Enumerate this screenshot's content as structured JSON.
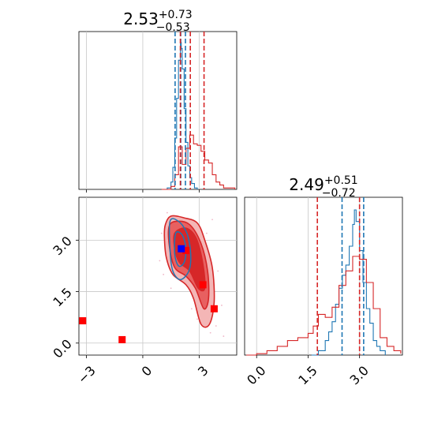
{
  "colors": {
    "red": "#d62728",
    "blue": "#1f77b4",
    "red_fill_light": "#f4b6b6",
    "red_fill_mid": "#e86060",
    "red_fill_dark": "#d62728",
    "marker_red": "#ff0000",
    "marker_blue": "#0000ff",
    "grid": "#c8c8c8"
  },
  "chart_data": [
    {
      "type": "histogram",
      "panel": "top-left marginal (parameter 1)",
      "title": {
        "value": "2.53",
        "upper": "+0.73",
        "lower": "−0.53"
      },
      "xlim": [
        -3.4,
        5.0
      ],
      "grid_x": [
        -3,
        0,
        3
      ],
      "lines": [
        {
          "x": 1.72,
          "color": "blue",
          "style": "dashed"
        },
        {
          "x": 2.02,
          "color": "blue",
          "style": "dashed"
        },
        {
          "x": 2.27,
          "color": "blue",
          "style": "dashed"
        },
        {
          "x": 2.0,
          "color": "red",
          "style": "dashed"
        },
        {
          "x": 2.53,
          "color": "red",
          "style": "dashed"
        },
        {
          "x": 3.26,
          "color": "red",
          "style": "dashed"
        }
      ],
      "series": [
        {
          "color": "blue",
          "x": [
            1.1,
            1.3,
            1.5,
            1.6,
            1.7,
            1.8,
            1.9,
            2.0,
            2.05,
            2.1,
            2.2,
            2.3,
            2.4,
            2.5,
            2.6,
            2.75,
            2.9
          ],
          "y": [
            0,
            0.01,
            0.05,
            0.15,
            0.35,
            0.62,
            0.88,
            1.0,
            0.96,
            0.82,
            0.55,
            0.32,
            0.16,
            0.08,
            0.04,
            0.01,
            0
          ]
        },
        {
          "color": "red",
          "x": [
            1.0,
            1.5,
            1.7,
            1.9,
            2.1,
            2.3,
            2.5,
            2.7,
            2.9,
            3.1,
            3.3,
            3.5,
            3.7,
            3.9,
            4.1,
            4.3,
            4.5,
            4.7,
            4.9
          ],
          "y": [
            0,
            0.02,
            0.1,
            0.29,
            0.17,
            0.28,
            0.37,
            0.31,
            0.3,
            0.26,
            0.2,
            0.18,
            0.1,
            0.05,
            0.03,
            0.01,
            0.01,
            0.01,
            0
          ]
        }
      ]
    },
    {
      "type": "scatter",
      "panel": "bottom-left 2D density (parameter 1 vs parameter 2)",
      "xlim": [
        -3.4,
        5.0
      ],
      "ylim": [
        -0.35,
        4.25
      ],
      "xticks": [
        -3,
        0,
        3
      ],
      "yticks": [
        0.0,
        1.5,
        3.0
      ],
      "xtick_labels": [
        "−3",
        "0",
        "3"
      ],
      "ytick_labels": [
        "0.0",
        "1.5",
        "3.0"
      ],
      "red_markers": [
        [
          -3.2,
          0.65
        ],
        [
          -1.1,
          0.1
        ],
        [
          3.2,
          1.7
        ],
        [
          3.8,
          1.0
        ],
        [
          2.3,
          2.7
        ]
      ],
      "blue_markers": [
        [
          2.05,
          2.75
        ]
      ],
      "red_contours": [
        {
          "level": "outer",
          "points": [
            [
              1.2,
              3.45
            ],
            [
              1.5,
              3.7
            ],
            [
              2.2,
              3.65
            ],
            [
              2.9,
              3.5
            ],
            [
              3.3,
              3.0
            ],
            [
              3.7,
              2.2
            ],
            [
              3.8,
              1.2
            ],
            [
              3.55,
              0.55
            ],
            [
              3.1,
              0.55
            ],
            [
              2.7,
              1.3
            ],
            [
              2.3,
              1.7
            ],
            [
              1.6,
              2.0
            ],
            [
              1.25,
              2.5
            ],
            [
              1.15,
              3.1
            ]
          ]
        },
        {
          "level": "middle",
          "points": [
            [
              1.4,
              3.4
            ],
            [
              1.8,
              3.55
            ],
            [
              2.5,
              3.45
            ],
            [
              3.1,
              2.9
            ],
            [
              3.45,
              2.1
            ],
            [
              3.5,
              1.3
            ],
            [
              3.25,
              1.0
            ],
            [
              2.8,
              1.6
            ],
            [
              2.3,
              1.95
            ],
            [
              1.7,
              2.2
            ],
            [
              1.42,
              2.8
            ]
          ]
        },
        {
          "level": "inner",
          "points": [
            [
              1.7,
              3.2
            ],
            [
              2.3,
              3.35
            ],
            [
              2.85,
              3.05
            ],
            [
              3.2,
              2.3
            ],
            [
              3.3,
              1.6
            ],
            [
              2.95,
              1.6
            ],
            [
              2.5,
              2.1
            ],
            [
              1.95,
              2.35
            ],
            [
              1.7,
              2.75
            ]
          ]
        }
      ],
      "blue_contours": [
        {
          "level": "outer",
          "points": [
            [
              1.45,
              3.55
            ],
            [
              1.9,
              3.55
            ],
            [
              2.35,
              3.2
            ],
            [
              2.55,
              2.6
            ],
            [
              2.45,
              2.1
            ],
            [
              2.0,
              1.85
            ],
            [
              1.6,
              2.1
            ],
            [
              1.45,
              2.7
            ]
          ]
        },
        {
          "level": "inner",
          "points": [
            [
              1.75,
              3.2
            ],
            [
              2.1,
              3.15
            ],
            [
              2.3,
              2.75
            ],
            [
              2.2,
              2.35
            ],
            [
              1.9,
              2.25
            ],
            [
              1.7,
              2.6
            ]
          ]
        }
      ],
      "scatter_points": [
        [
          1.3,
          3.8
        ],
        [
          1.0,
          3.2
        ],
        [
          3.6,
          0.3
        ],
        [
          3.9,
          0.5
        ],
        [
          4.2,
          1.1
        ],
        [
          0.9,
          2.4
        ],
        [
          1.1,
          2.0
        ],
        [
          3.4,
          3.2
        ],
        [
          4.0,
          2.1
        ],
        [
          2.6,
          1.0
        ],
        [
          1.5,
          1.6
        ],
        [
          3.7,
          3.6
        ],
        [
          4.3,
          0.2
        ],
        [
          2.9,
          0.7
        ]
      ]
    },
    {
      "type": "histogram",
      "panel": "bottom-right marginal (parameter 2)",
      "title": {
        "value": "2.49",
        "upper": "+0.51",
        "lower": "−0.72"
      },
      "xlim": [
        -0.35,
        4.25
      ],
      "grid_x": [
        0.0,
        1.5,
        3.0
      ],
      "xticks": [
        0.0,
        1.5,
        3.0
      ],
      "xtick_labels": [
        "0.0",
        "1.5",
        "3.0"
      ],
      "lines": [
        {
          "x": 1.77,
          "color": "red",
          "style": "dashed"
        },
        {
          "x": 2.49,
          "color": "blue",
          "style": "dashed"
        },
        {
          "x": 3.0,
          "color": "red",
          "style": "dashed"
        },
        {
          "x": 3.12,
          "color": "blue",
          "style": "dashed"
        }
      ],
      "series": [
        {
          "color": "blue",
          "x": [
            1.6,
            1.8,
            2.0,
            2.1,
            2.2,
            2.3,
            2.4,
            2.5,
            2.6,
            2.7,
            2.8,
            2.85,
            2.9,
            3.0,
            3.1,
            3.2,
            3.3,
            3.4,
            3.5,
            3.6,
            3.75
          ],
          "y": [
            0,
            0.03,
            0.1,
            0.16,
            0.23,
            0.35,
            0.46,
            0.55,
            0.62,
            0.75,
            0.9,
            1.0,
            0.92,
            0.72,
            0.5,
            0.32,
            0.22,
            0.1,
            0.06,
            0.03,
            0
          ]
        },
        {
          "color": "red",
          "x": [
            -0.3,
            0.0,
            0.3,
            0.6,
            0.9,
            1.2,
            1.5,
            1.65,
            1.8,
            2.0,
            2.2,
            2.4,
            2.6,
            2.8,
            3.0,
            3.2,
            3.4,
            3.6,
            3.8,
            4.0,
            4.2
          ],
          "y": [
            0,
            0.01,
            0.03,
            0.06,
            0.1,
            0.12,
            0.15,
            0.2,
            0.28,
            0.26,
            0.33,
            0.48,
            0.58,
            0.68,
            0.66,
            0.5,
            0.32,
            0.12,
            0.06,
            0.03,
            0.01
          ]
        }
      ]
    }
  ]
}
